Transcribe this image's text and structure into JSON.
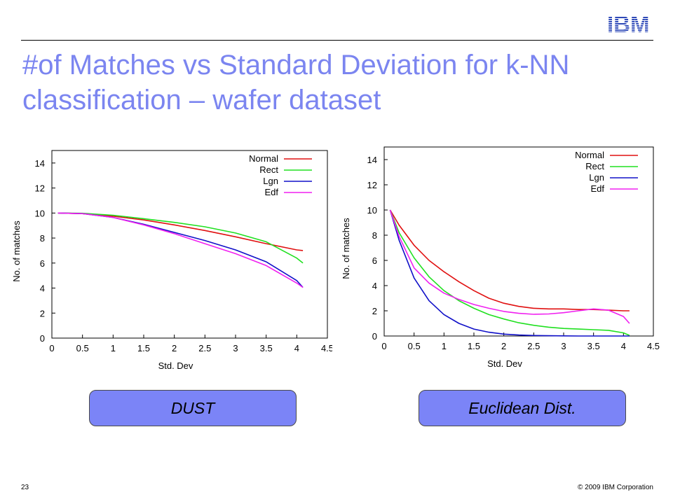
{
  "header": {
    "logo_text": "IBM",
    "title": "#of Matches vs Standard Deviation for k-NN classification – wafer dataset"
  },
  "colors": {
    "title": "#7b85f0",
    "logo": "#2f4ab8",
    "box_fill": "#7b84f7",
    "Normal": "#e01010",
    "Rect": "#20e020",
    "Lgn": "#1010c8",
    "Edf": "#f020f0"
  },
  "chart_data": [
    {
      "type": "line",
      "xlabel": "Std. Dev",
      "ylabel": "No. of matches",
      "xlim": [
        0,
        4.5
      ],
      "ylim": [
        0,
        15
      ],
      "xticks": [
        "0",
        "0.5",
        "1",
        "1.5",
        "2",
        "2.5",
        "3",
        "3.5",
        "4",
        "4.5"
      ],
      "yticks": [
        "0",
        "2",
        "4",
        "6",
        "8",
        "10",
        "12",
        "14"
      ],
      "legend": "top-right",
      "grid": false,
      "x": [
        0.1,
        0.5,
        1.0,
        1.5,
        2.0,
        2.5,
        3.0,
        3.5,
        4.0,
        4.1
      ],
      "series": [
        {
          "name": "Normal",
          "values": [
            10,
            9.95,
            9.75,
            9.45,
            9.05,
            8.6,
            8.1,
            7.55,
            7.05,
            7.0
          ]
        },
        {
          "name": "Rect",
          "values": [
            10,
            9.98,
            9.82,
            9.55,
            9.25,
            8.9,
            8.4,
            7.7,
            6.4,
            6.0
          ]
        },
        {
          "name": "Lgn",
          "values": [
            10,
            9.95,
            9.65,
            9.1,
            8.45,
            7.8,
            7.05,
            6.1,
            4.6,
            4.05
          ]
        },
        {
          "name": "Edf",
          "values": [
            10,
            9.95,
            9.65,
            9.05,
            8.35,
            7.55,
            6.75,
            5.8,
            4.4,
            4.05
          ]
        }
      ]
    },
    {
      "type": "line",
      "xlabel": "Std. Dev",
      "ylabel": "No. of matches",
      "xlim": [
        0,
        4.5
      ],
      "ylim": [
        0,
        15
      ],
      "xticks": [
        "0",
        "0.5",
        "1",
        "1.5",
        "2",
        "2.5",
        "3",
        "3.5",
        "4",
        "4.5"
      ],
      "yticks": [
        "0",
        "2",
        "4",
        "6",
        "8",
        "10",
        "12",
        "14"
      ],
      "legend": "top-right",
      "grid": false,
      "x": [
        0.1,
        0.25,
        0.5,
        0.75,
        1.0,
        1.25,
        1.5,
        1.75,
        2.0,
        2.25,
        2.5,
        2.75,
        3.0,
        3.25,
        3.5,
        3.75,
        4.0,
        4.1
      ],
      "series": [
        {
          "name": "Normal",
          "values": [
            10,
            8.8,
            7.2,
            6.0,
            5.1,
            4.3,
            3.6,
            3.0,
            2.6,
            2.35,
            2.2,
            2.15,
            2.15,
            2.1,
            2.1,
            2.05,
            2.0,
            2.0
          ]
        },
        {
          "name": "Rect",
          "values": [
            10,
            8.2,
            6.2,
            4.7,
            3.6,
            2.8,
            2.2,
            1.7,
            1.35,
            1.05,
            0.85,
            0.7,
            0.6,
            0.55,
            0.5,
            0.45,
            0.25,
            0.05
          ]
        },
        {
          "name": "Lgn",
          "values": [
            10,
            7.6,
            4.6,
            2.8,
            1.7,
            1.0,
            0.55,
            0.3,
            0.15,
            0.08,
            0.04,
            0.02,
            0.01,
            0.0,
            0.0,
            0.0,
            0.0,
            0.0
          ]
        },
        {
          "name": "Edf",
          "values": [
            10,
            7.9,
            5.4,
            4.2,
            3.4,
            2.9,
            2.5,
            2.2,
            1.95,
            1.8,
            1.72,
            1.75,
            1.85,
            2.0,
            2.15,
            2.05,
            1.55,
            1.0
          ]
        }
      ]
    }
  ],
  "boxes": {
    "left": "DUST",
    "right": "Euclidean Dist."
  },
  "footer": {
    "page_number": "23",
    "copyright": "© 2009 IBM Corporation"
  }
}
